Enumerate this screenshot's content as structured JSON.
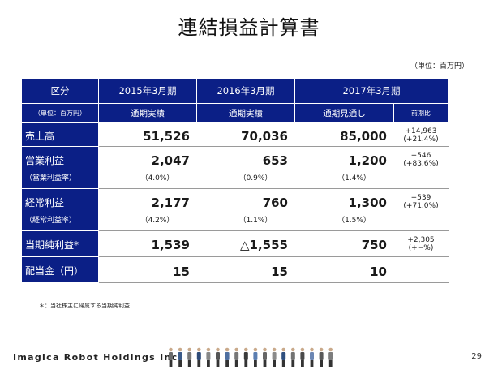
{
  "title": "連結損益計算書",
  "unit_note": "（単位：百万円）",
  "table": {
    "header": {
      "col0": "区分",
      "col0_sub": "（単位：百万円）",
      "fy2015": "2015年3月期",
      "fy2016": "2016年3月期",
      "fy2017": "2017年3月期",
      "fy2015_sub": "通期実績",
      "fy2016_sub": "通期実績",
      "fy2017_sub": "通期見通し",
      "yoy_sub": "前期比"
    },
    "rows": [
      {
        "label": "売上高",
        "sub": "",
        "v2015": "51,526",
        "v2016": "70,036",
        "v2017": "85,000",
        "p2015": "",
        "p2016": "",
        "p2017": "",
        "yoy1": "+14,963",
        "yoy2": "(+21.4%)"
      },
      {
        "label": "営業利益",
        "sub": "（営業利益率）",
        "v2015": "2,047",
        "v2016": "653",
        "v2017": "1,200",
        "p2015": "（4.0%）",
        "p2016": "（0.9%）",
        "p2017": "（1.4%）",
        "yoy1": "+546",
        "yoy2": "(+83.6%)"
      },
      {
        "label": "経常利益",
        "sub": "（経常利益率）",
        "v2015": "2,177",
        "v2016": "760",
        "v2017": "1,300",
        "p2015": "（4.2%）",
        "p2016": "（1.1%）",
        "p2017": "（1.5%）",
        "yoy1": "+539",
        "yoy2": "(+71.0%)"
      },
      {
        "label": "当期純利益*",
        "sub": "",
        "v2015": "1,539",
        "v2016": "△1,555",
        "v2017": "750",
        "p2015": "",
        "p2016": "",
        "p2017": "",
        "yoy1": "+2,305",
        "yoy2": "(+−%)"
      },
      {
        "label": "配当金（円）",
        "sub": "",
        "v2015": "15",
        "v2016": "15",
        "v2017": "10",
        "p2015": "",
        "p2016": "",
        "p2017": "",
        "yoy1": "",
        "yoy2": ""
      }
    ]
  },
  "footnote": "＊：当社株主に帰属する当期純利益",
  "footer": {
    "logo": "Imagica Robot Holdings Inc.",
    "page": "29"
  },
  "colors": {
    "header_bg": "#0b1f86",
    "rule": "#cccccc"
  }
}
